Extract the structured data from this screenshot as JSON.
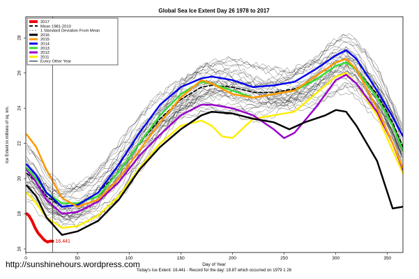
{
  "chart_data": {
    "type": "line",
    "title": "Global Sea Ice Extent Day 26 1978 to 2017",
    "xlabel": "Day of Year",
    "ylabel": "Ice Extent in millions of sq. km.",
    "xlim": [
      0,
      365
    ],
    "ylim": [
      15.8,
      29.2
    ],
    "x_ticks": [
      0,
      50,
      100,
      150,
      200,
      250,
      300,
      350
    ],
    "y_ticks": [
      16,
      18,
      20,
      22,
      24,
      26,
      28
    ],
    "grid": false,
    "legend_position": "top-left",
    "vline_x": 26,
    "point_label": {
      "x": 26,
      "y": 16.441,
      "text": "16.441",
      "color": "#dd0000"
    },
    "footer": "Today's Ice Extent: 16.441  - Record for the day: 19.87 which occurred on 1979 1 26",
    "watermark": "http://sunshinehours.wordpress.com",
    "legend": [
      {
        "label": "2017",
        "color": "#ee0000",
        "width": 4,
        "dash": ""
      },
      {
        "label": "Mean 1981-2010",
        "color": "#000000",
        "width": 2,
        "dash": "5,3"
      },
      {
        "label": "1 Standard Deviation From Mean",
        "color": "#888888",
        "width": 1,
        "dash": "2,2"
      },
      {
        "label": "2016",
        "color": "#000000",
        "width": 3,
        "dash": ""
      },
      {
        "label": "2015",
        "color": "#ff9900",
        "width": 3,
        "dash": ""
      },
      {
        "label": "2014",
        "color": "#0000ee",
        "width": 3,
        "dash": ""
      },
      {
        "label": "2013",
        "color": "#33dd33",
        "width": 3,
        "dash": ""
      },
      {
        "label": "2012",
        "color": "#9900cc",
        "width": 3,
        "dash": ""
      },
      {
        "label": "2011",
        "color": "#ffee00",
        "width": 3,
        "dash": ""
      },
      {
        "label": "Every Other Year",
        "color": "#000000",
        "width": 1,
        "dash": ""
      }
    ],
    "series": [
      {
        "name": "2017",
        "color": "#ee0000",
        "width": 4,
        "x": [
          1,
          3,
          6,
          9,
          12,
          15,
          18,
          21,
          24,
          26
        ],
        "y": [
          18.0,
          17.9,
          17.6,
          17.2,
          16.9,
          16.7,
          16.5,
          16.4,
          16.45,
          16.44
        ]
      },
      {
        "name": "2016",
        "color": "#000000",
        "width": 2.5,
        "x": [
          1,
          10,
          20,
          35,
          50,
          70,
          90,
          110,
          130,
          150,
          170,
          180,
          200,
          220,
          240,
          255,
          270,
          290,
          300,
          310,
          320,
          340,
          355,
          365
        ],
        "y": [
          19.6,
          19.0,
          17.8,
          16.8,
          17.0,
          17.6,
          18.8,
          20.5,
          21.8,
          22.8,
          23.6,
          23.8,
          23.7,
          23.4,
          23.2,
          22.8,
          23.2,
          23.6,
          23.9,
          23.8,
          23.0,
          21.0,
          18.3,
          18.4
        ]
      },
      {
        "name": "2015",
        "color": "#ff9900",
        "width": 2.5,
        "x": [
          1,
          10,
          20,
          35,
          50,
          70,
          90,
          110,
          130,
          150,
          170,
          180,
          200,
          220,
          240,
          260,
          280,
          300,
          310,
          320,
          340,
          355,
          365
        ],
        "y": [
          22.5,
          21.8,
          20.5,
          18.9,
          18.4,
          18.8,
          20.0,
          21.6,
          23.2,
          24.6,
          25.6,
          25.4,
          24.8,
          24.6,
          24.8,
          25.0,
          25.8,
          26.6,
          26.8,
          26.2,
          24.0,
          22.0,
          20.6
        ]
      },
      {
        "name": "2014",
        "color": "#0000ee",
        "width": 2.5,
        "x": [
          1,
          10,
          20,
          35,
          50,
          70,
          90,
          110,
          130,
          150,
          170,
          180,
          200,
          220,
          240,
          260,
          280,
          300,
          310,
          320,
          340,
          355,
          365
        ],
        "y": [
          20.8,
          20.2,
          19.2,
          18.4,
          18.5,
          19.2,
          20.8,
          22.6,
          24.2,
          25.2,
          25.7,
          25.8,
          25.6,
          25.2,
          25.3,
          25.5,
          26.2,
          27.0,
          27.3,
          26.8,
          25.0,
          23.5,
          22.4
        ]
      },
      {
        "name": "2013",
        "color": "#33dd33",
        "width": 2.5,
        "x": [
          1,
          10,
          20,
          35,
          50,
          70,
          90,
          110,
          130,
          150,
          170,
          180,
          200,
          220,
          240,
          260,
          280,
          300,
          310,
          320,
          340,
          355,
          365
        ],
        "y": [
          20.6,
          20.0,
          19.2,
          18.6,
          18.6,
          19.0,
          20.4,
          22.0,
          23.6,
          24.8,
          25.5,
          25.4,
          25.0,
          24.6,
          24.8,
          25.0,
          25.6,
          26.4,
          26.6,
          26.2,
          24.6,
          23.0,
          21.6
        ]
      },
      {
        "name": "2012",
        "color": "#9900cc",
        "width": 2.5,
        "x": [
          1,
          10,
          20,
          35,
          50,
          70,
          90,
          110,
          130,
          150,
          170,
          180,
          200,
          220,
          240,
          250,
          260,
          280,
          300,
          310,
          320,
          340,
          355,
          365
        ],
        "y": [
          20.5,
          19.8,
          18.8,
          18.0,
          18.1,
          18.7,
          19.8,
          21.3,
          22.5,
          23.6,
          24.2,
          24.2,
          24.0,
          23.6,
          22.8,
          22.3,
          22.6,
          24.0,
          25.6,
          25.9,
          25.4,
          23.8,
          22.0,
          20.5
        ]
      },
      {
        "name": "2011",
        "color": "#ffee00",
        "width": 2.5,
        "x": [
          1,
          10,
          20,
          35,
          50,
          70,
          90,
          110,
          130,
          150,
          170,
          180,
          190,
          200,
          220,
          240,
          260,
          280,
          300,
          310,
          320,
          340,
          355,
          365
        ],
        "y": [
          19.2,
          18.6,
          17.8,
          17.2,
          17.3,
          17.9,
          19.0,
          20.6,
          22.0,
          23.0,
          23.3,
          23.0,
          22.4,
          22.3,
          23.4,
          23.6,
          23.8,
          24.8,
          25.8,
          26.0,
          25.4,
          23.6,
          21.6,
          20.3
        ]
      },
      {
        "name": "Mean 1981-2010",
        "color": "#000000",
        "width": 1.6,
        "dash": "5,3",
        "x": [
          1,
          10,
          20,
          35,
          50,
          70,
          90,
          110,
          130,
          150,
          170,
          180,
          200,
          220,
          240,
          260,
          280,
          300,
          310,
          320,
          340,
          355,
          365
        ],
        "y": [
          20.3,
          19.8,
          19.0,
          18.4,
          18.5,
          19.2,
          20.4,
          22.0,
          23.4,
          24.5,
          25.2,
          25.3,
          25.2,
          24.9,
          24.9,
          25.1,
          25.6,
          26.4,
          26.6,
          26.2,
          24.8,
          23.2,
          21.8
        ]
      }
    ]
  }
}
